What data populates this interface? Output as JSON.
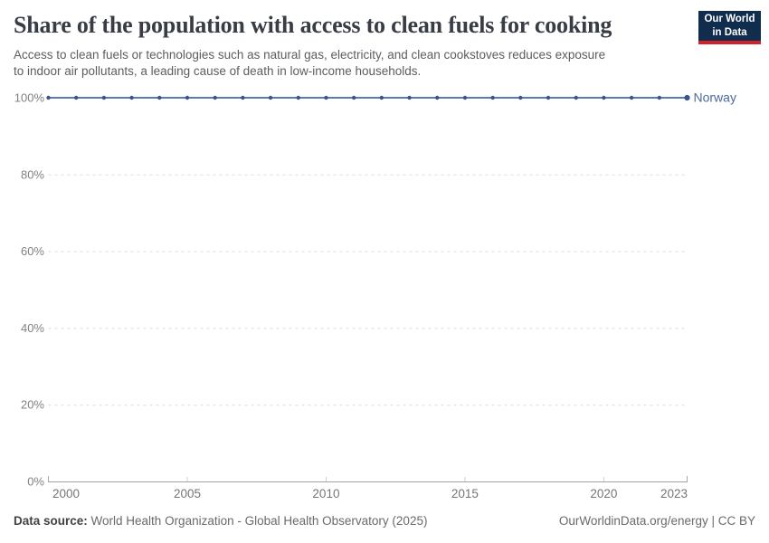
{
  "header": {
    "title": "Share of the population with access to clean fuels for cooking",
    "subtitle_line1": "Access to clean fuels or technologies such as natural gas, electricity, and clean cookstoves reduces exposure",
    "subtitle_line2": "to indoor air pollutants, a leading cause of death in low-income households."
  },
  "logo": {
    "line1": "Our World",
    "line2": "in Data",
    "bg_color": "#102d4e",
    "stripe_color": "#d0222a"
  },
  "chart_data": {
    "type": "line",
    "title": "Share of the population with access to clean fuels for cooking",
    "x": [
      2000,
      2001,
      2002,
      2003,
      2004,
      2005,
      2006,
      2007,
      2008,
      2009,
      2010,
      2011,
      2012,
      2013,
      2014,
      2015,
      2016,
      2017,
      2018,
      2019,
      2020,
      2021,
      2022,
      2023
    ],
    "series": [
      {
        "name": "Norway",
        "values": [
          100,
          100,
          100,
          100,
          100,
          100,
          100,
          100,
          100,
          100,
          100,
          100,
          100,
          100,
          100,
          100,
          100,
          100,
          100,
          100,
          100,
          100,
          100,
          100
        ],
        "line_color": "#5b7cb3",
        "marker_color": "#3d5488",
        "label_color": "#4c6a9c"
      }
    ],
    "xlim": [
      2000,
      2023
    ],
    "ylim": [
      0,
      100
    ],
    "yticks": [
      0,
      20,
      40,
      60,
      80,
      100
    ],
    "ytick_labels": [
      "0%",
      "20%",
      "40%",
      "60%",
      "80%",
      "100%"
    ],
    "xticks": [
      2000,
      2005,
      2010,
      2015,
      2020,
      2023
    ],
    "xtick_labels": [
      "2000",
      "2005",
      "2010",
      "2015",
      "2020",
      "2023"
    ],
    "grid": "horizontal-dashed",
    "legend_position": "end-of-line"
  },
  "footer": {
    "source_label": "Data source:",
    "source_text": " World Health Organization - Global Health Observatory (2025)",
    "credit": "OurWorldinData.org/energy | CC BY"
  }
}
